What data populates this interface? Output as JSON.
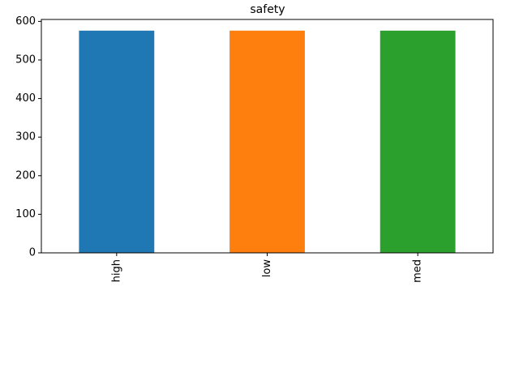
{
  "chart_data": {
    "type": "bar",
    "title": "safety",
    "xlabel": "",
    "ylabel": "",
    "categories": [
      "high",
      "low",
      "med"
    ],
    "values": [
      576,
      576,
      576
    ],
    "colors": [
      "#1f77b4",
      "#ff7f0e",
      "#2ca02c"
    ],
    "ylim": [
      0,
      605
    ],
    "yticks": [
      0,
      100,
      200,
      300,
      400,
      500,
      600
    ],
    "ytick_labels": [
      "0",
      "100",
      "200",
      "300",
      "400",
      "500",
      "600"
    ],
    "grid": false,
    "legend": "none",
    "xtick_rotation": "vertical"
  }
}
